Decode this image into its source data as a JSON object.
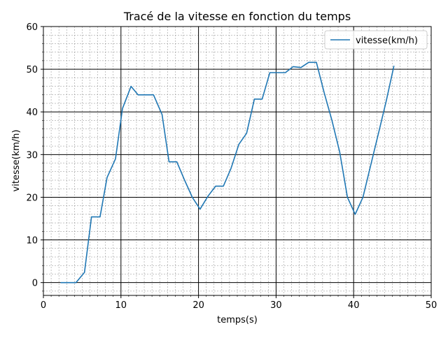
{
  "chart_data": {
    "type": "line",
    "title": "Tracé de la vitesse en fonction du temps",
    "xlabel": "temps(s)",
    "ylabel": "vitesse(km/h)",
    "xlim": [
      0,
      50
    ],
    "ylim": [
      -3,
      60
    ],
    "xticks": [
      0,
      10,
      20,
      30,
      40,
      50
    ],
    "yticks": [
      0,
      10,
      20,
      30,
      40,
      50,
      60
    ],
    "grid": "major and minor",
    "legend_position": "top-right",
    "series": [
      {
        "name": "vitesse(km/h)",
        "color": "#1f77b4",
        "x": [
          2.2,
          3.2,
          4.2,
          5.3,
          6.2,
          7.3,
          8.2,
          9.3,
          10.2,
          11.3,
          12.2,
          13.2,
          14.2,
          15.3,
          16.2,
          17.2,
          18.2,
          19.2,
          20.2,
          21.2,
          22.2,
          23.2,
          24.2,
          25.2,
          26.2,
          27.2,
          28.2,
          29.2,
          30.2,
          31.2,
          32.2,
          33.2,
          34.2,
          35.2,
          36.2,
          37.2,
          38.2,
          39.2,
          40.2,
          41.2,
          42.2,
          43.2,
          44.2,
          45.2
        ],
        "y": [
          0,
          0,
          0,
          2.4,
          15.4,
          15.4,
          24.6,
          29,
          40.8,
          46,
          44,
          44,
          44,
          39.4,
          28.3,
          28.3,
          24,
          20,
          17.2,
          20.2,
          22.6,
          22.6,
          26.8,
          32.4,
          35,
          43,
          43,
          49.2,
          49.2,
          49.2,
          50.6,
          50.4,
          51.6,
          51.6,
          44.5,
          38,
          30.6,
          20,
          16,
          20,
          27.5,
          35,
          42.5,
          50.8
        ]
      }
    ]
  }
}
